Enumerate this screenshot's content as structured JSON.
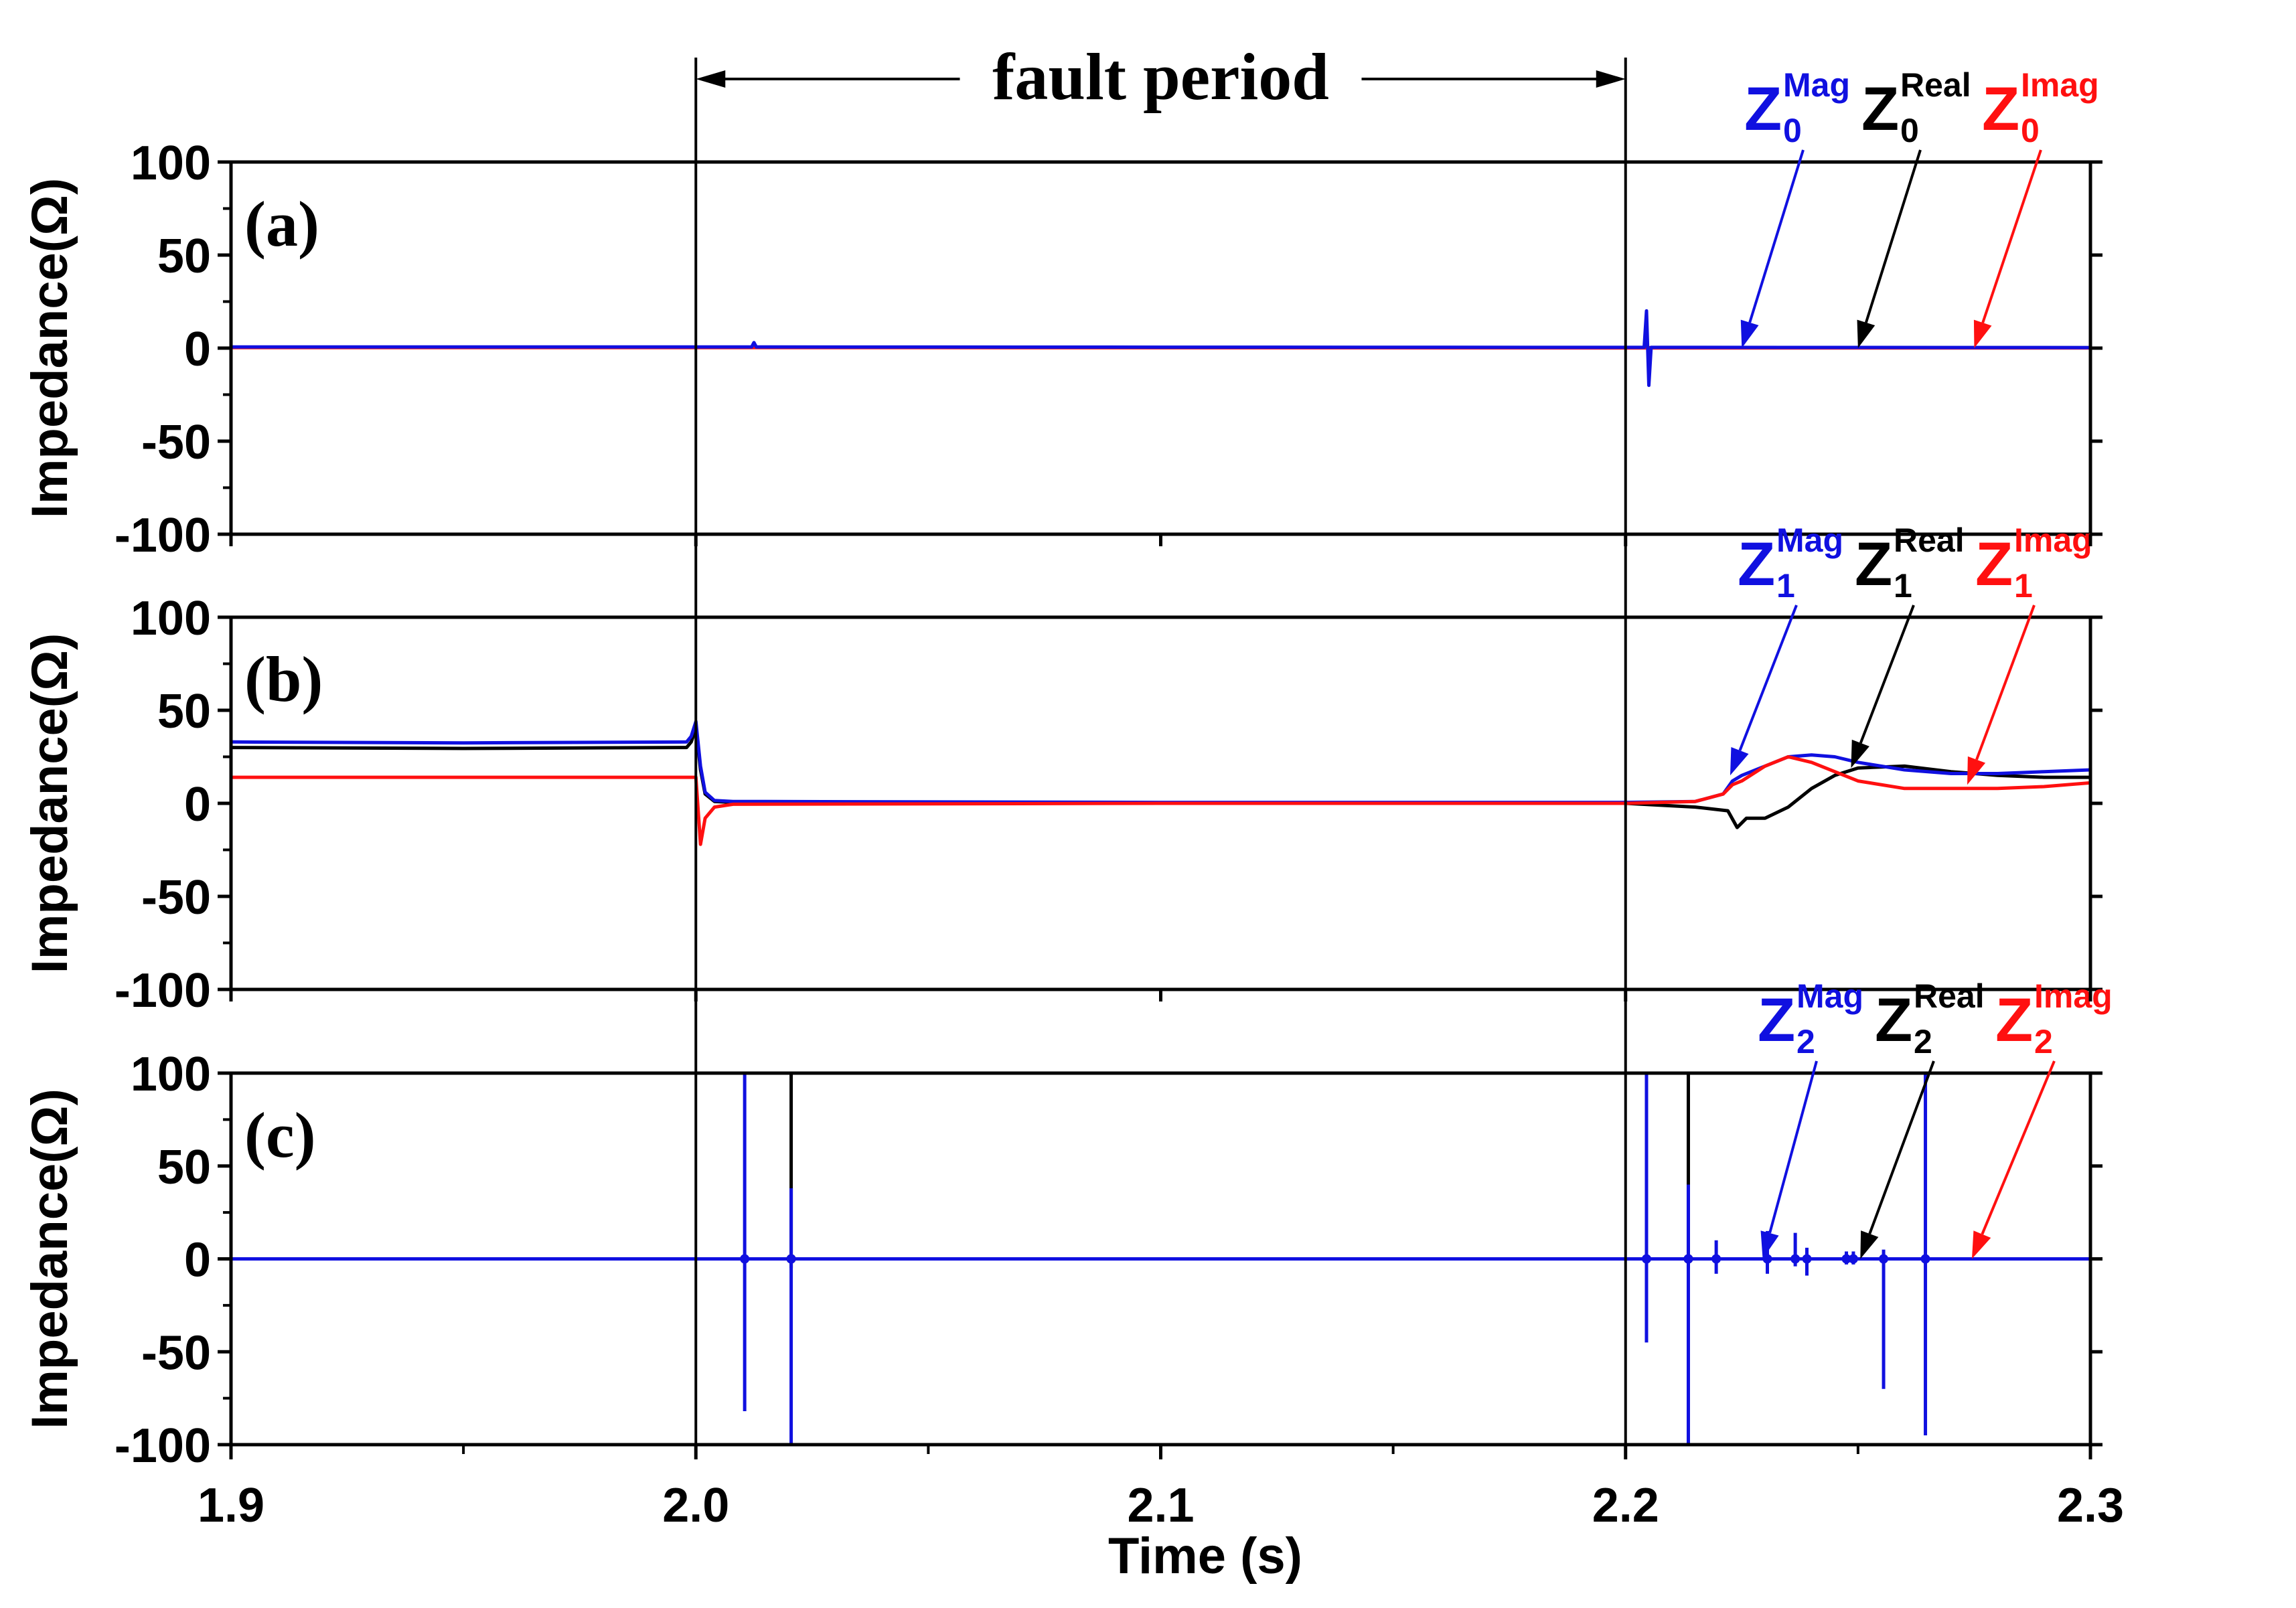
{
  "colors": {
    "mag": "#1010e0",
    "real": "#000000",
    "imag": "#ff1010"
  },
  "fault_label": "fault period",
  "chart_data": [
    {
      "type": "line",
      "panel_label": "(a)",
      "xlim": [
        1.9,
        2.3
      ],
      "ylim": [
        -100,
        100
      ],
      "yticks": [
        100,
        50,
        0,
        -50,
        -100
      ],
      "ytick_labels": [
        "100",
        "50",
        "0",
        "-50",
        "-100"
      ],
      "ylabel": "Impedance(Ω)",
      "series": [
        {
          "name": "Z0 Real",
          "key": "real",
          "x": [
            1.9,
            2.0,
            2.1,
            2.2,
            2.3
          ],
          "y": [
            0.5,
            0.5,
            0.3,
            0.2,
            0.2
          ]
        },
        {
          "name": "Z0 Imag",
          "key": "imag",
          "x": [
            1.9,
            2.0,
            2.1,
            2.2,
            2.3
          ],
          "y": [
            0.3,
            0.3,
            0.2,
            0.1,
            0.1
          ]
        },
        {
          "name": "Z0 Mag",
          "key": "mag",
          "x": [
            1.9,
            2.0,
            2.012,
            2.0125,
            2.013,
            2.1,
            2.2,
            2.204,
            2.2045,
            2.205,
            2.2055,
            2.206,
            2.3
          ],
          "y": [
            0.6,
            0.6,
            0.6,
            3,
            0.6,
            0.5,
            0.4,
            0.4,
            20,
            -20,
            0.4,
            0.4,
            0.3
          ]
        }
      ],
      "annotations": [
        {
          "base": "Z",
          "sub": "0",
          "sup": "Mag",
          "key": "mag",
          "target": [
            2.225,
            0
          ]
        },
        {
          "base": "Z",
          "sub": "0",
          "sup": "Real",
          "key": "real",
          "target": [
            2.25,
            0
          ]
        },
        {
          "base": "Z",
          "sub": "0",
          "sup": "Imag",
          "key": "imag",
          "target": [
            2.275,
            0
          ]
        }
      ]
    },
    {
      "type": "line",
      "panel_label": "(b)",
      "xlim": [
        1.9,
        2.3
      ],
      "ylim": [
        -100,
        100
      ],
      "yticks": [
        100,
        50,
        0,
        -50,
        -100
      ],
      "ytick_labels": [
        "100",
        "50",
        "0",
        "-50",
        "-100"
      ],
      "ylabel": "Impedance(Ω)",
      "series": [
        {
          "name": "Z1 Real",
          "key": "real",
          "x": [
            1.9,
            1.95,
            1.998,
            1.999,
            2.0,
            2.001,
            2.002,
            2.004,
            2.008,
            2.1,
            2.2,
            2.215,
            2.222,
            2.224,
            2.226,
            2.23,
            2.235,
            2.24,
            2.245,
            2.25,
            2.26,
            2.27,
            2.28,
            2.29,
            2.3
          ],
          "y": [
            30,
            29.5,
            30,
            33,
            40,
            18,
            5,
            1,
            0.5,
            0,
            0,
            -2,
            -4,
            -13,
            -8,
            -8,
            -2,
            8,
            15,
            19,
            20,
            17,
            15,
            14,
            14
          ]
        },
        {
          "name": "Z1 Mag",
          "key": "mag",
          "x": [
            1.9,
            1.95,
            1.998,
            1.999,
            2.0,
            2.001,
            2.002,
            2.004,
            2.008,
            2.1,
            2.2,
            2.215,
            2.221,
            2.223,
            2.225,
            2.23,
            2.235,
            2.24,
            2.245,
            2.25,
            2.26,
            2.27,
            2.28,
            2.29,
            2.3
          ],
          "y": [
            33,
            32.5,
            33,
            36,
            44,
            20,
            6,
            1.5,
            1,
            0.5,
            0.5,
            1,
            5,
            12,
            15,
            20,
            25,
            26,
            25,
            22,
            18,
            16,
            16,
            17,
            18
          ]
        },
        {
          "name": "Z1 Imag",
          "key": "imag",
          "x": [
            1.9,
            1.95,
            1.998,
            1.999,
            2.0,
            2.001,
            2.002,
            2.004,
            2.008,
            2.1,
            2.2,
            2.215,
            2.221,
            2.223,
            2.225,
            2.23,
            2.235,
            2.24,
            2.245,
            2.25,
            2.26,
            2.27,
            2.28,
            2.29,
            2.3
          ],
          "y": [
            14,
            14,
            14,
            14,
            14,
            -22,
            -8,
            -2,
            -0.5,
            0,
            0,
            1,
            5,
            10,
            12,
            20,
            25,
            22,
            17,
            12,
            8,
            8,
            8,
            9,
            11
          ]
        }
      ],
      "annotations": [
        {
          "base": "Z",
          "sub": "1",
          "sup": "Mag",
          "key": "mag",
          "target": [
            2.2225,
            15
          ]
        },
        {
          "base": "Z",
          "sub": "1",
          "sup": "Real",
          "key": "real",
          "target": [
            2.2485,
            19
          ]
        },
        {
          "base": "Z",
          "sub": "1",
          "sup": "Imag",
          "key": "imag",
          "target": [
            2.2735,
            10
          ]
        }
      ]
    },
    {
      "type": "line",
      "panel_label": "(c)",
      "xlim": [
        1.9,
        2.3
      ],
      "ylim": [
        -100,
        100
      ],
      "yticks": [
        100,
        50,
        0,
        -50,
        -100
      ],
      "ytick_labels": [
        "100",
        "50",
        "0",
        "-50",
        "-100"
      ],
      "ylabel": "Impedance(Ω)",
      "series": [
        {
          "name": "Z2 Real",
          "key": "real",
          "x": [
            1.9,
            2.3
          ],
          "y": [
            0,
            0
          ]
        },
        {
          "name": "Z2 Imag",
          "key": "imag",
          "x": [
            1.9,
            2.3
          ],
          "y": [
            0,
            0
          ]
        },
        {
          "name": "Z2 Mag",
          "key": "mag",
          "x": [
            1.9,
            2.3
          ],
          "y": [
            0,
            0
          ]
        }
      ],
      "spikes": [
        {
          "key": "mag",
          "x": 2.0105,
          "top": 100,
          "bottom": -82
        },
        {
          "key": "real",
          "x": 2.0205,
          "top": 100,
          "bottom": -5
        },
        {
          "key": "mag",
          "x": 2.0205,
          "top": 38,
          "bottom": -100
        },
        {
          "key": "mag",
          "x": 2.2045,
          "top": 100,
          "bottom": -45
        },
        {
          "key": "real",
          "x": 2.2135,
          "top": 100,
          "bottom": -5
        },
        {
          "key": "mag",
          "x": 2.2135,
          "top": 40,
          "bottom": -100
        },
        {
          "key": "mag",
          "x": 2.2195,
          "top": 10,
          "bottom": -8
        },
        {
          "key": "mag",
          "x": 2.2305,
          "top": 15,
          "bottom": -8
        },
        {
          "key": "mag",
          "x": 2.2365,
          "top": 14,
          "bottom": -4
        },
        {
          "key": "mag",
          "x": 2.239,
          "top": 6,
          "bottom": -9
        },
        {
          "key": "mag",
          "x": 2.2475,
          "top": 4,
          "bottom": -3
        },
        {
          "key": "mag",
          "x": 2.249,
          "top": 4,
          "bottom": -3
        },
        {
          "key": "mag",
          "x": 2.2555,
          "top": 5,
          "bottom": -70
        },
        {
          "key": "mag",
          "x": 2.2645,
          "top": 100,
          "bottom": -95
        }
      ],
      "annotations": [
        {
          "base": "Z",
          "sub": "2",
          "sup": "Mag",
          "key": "mag",
          "target": [
            2.2295,
            0
          ]
        },
        {
          "base": "Z",
          "sub": "2",
          "sup": "Real",
          "key": "real",
          "target": [
            2.2505,
            0
          ]
        },
        {
          "base": "Z",
          "sub": "2",
          "sup": "Imag",
          "key": "imag",
          "target": [
            2.2745,
            0
          ]
        }
      ]
    }
  ],
  "xaxis": {
    "label": "Time (s)",
    "ticks": [
      1.9,
      2.0,
      2.1,
      2.2,
      2.3
    ],
    "tick_labels": [
      "1.9",
      "2.0",
      "2.1",
      "2.2",
      "2.3"
    ]
  },
  "fault_period": [
    2.0,
    2.2
  ]
}
